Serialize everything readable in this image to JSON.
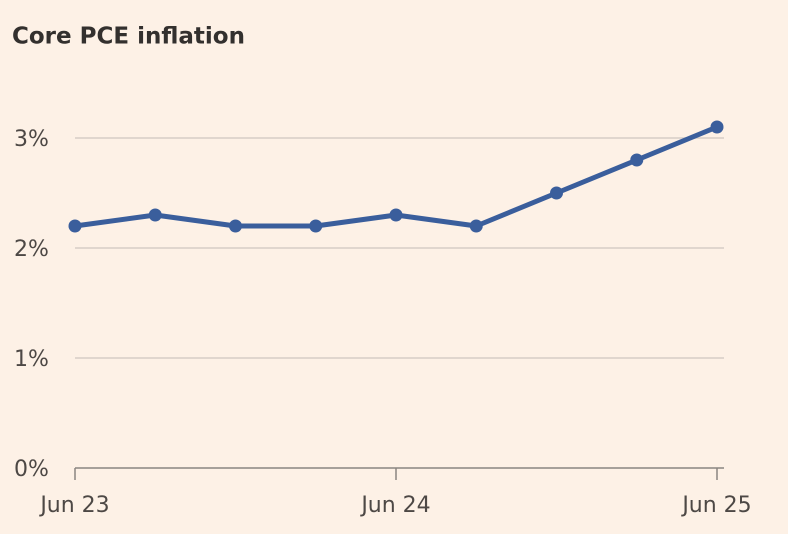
{
  "chart_data": {
    "type": "line",
    "title": "Core PCE inflation",
    "categories": [
      "Jun 23",
      null,
      null,
      null,
      "Jun 24",
      null,
      null,
      null,
      "Jun 25"
    ],
    "values": [
      2.2,
      2.3,
      2.2,
      2.2,
      2.3,
      2.2,
      2.5,
      2.8,
      3.1
    ],
    "color": "#3a5e9c",
    "ylim": [
      0,
      3.2
    ],
    "yticks": [
      {
        "value": 0,
        "label": "0%"
      },
      {
        "value": 1,
        "label": "1%"
      },
      {
        "value": 2,
        "label": "2%"
      },
      {
        "value": 3,
        "label": "3%"
      }
    ],
    "grid": true
  }
}
